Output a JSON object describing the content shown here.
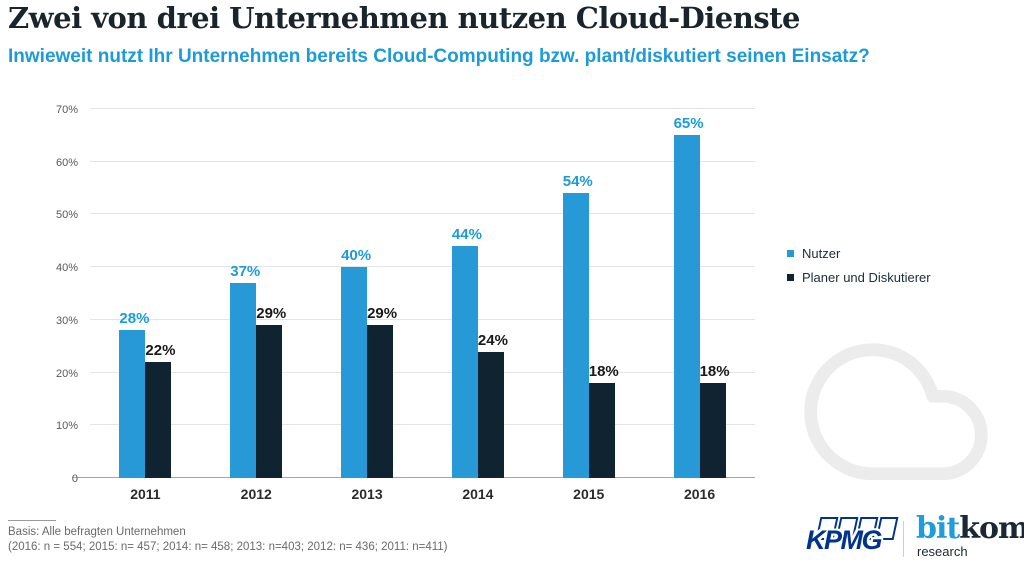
{
  "header": {
    "title": "Zwei von drei Unternehmen nutzen Cloud-Dienste",
    "subtitle": "Inwieweit nutzt Ihr Unternehmen bereits Cloud-Computing bzw. plant/diskutiert seinen Einsatz?"
  },
  "chart_data": {
    "type": "bar",
    "title": "Zwei von drei Unternehmen nutzen Cloud-Dienste",
    "categories": [
      "2011",
      "2012",
      "2013",
      "2014",
      "2015",
      "2016"
    ],
    "series": [
      {
        "name": "Nutzer",
        "color": "#2799d6",
        "label_color": "#1b9cd8",
        "values": [
          28,
          37,
          40,
          44,
          54,
          65
        ]
      },
      {
        "name": "Planer und Diskutierer",
        "color": "#0f2430",
        "label_color": "#1a1a1a",
        "values": [
          22,
          29,
          29,
          24,
          18,
          18
        ]
      }
    ],
    "value_suffix": "%",
    "ylim": [
      0,
      70
    ],
    "yticks": [
      {
        "value": 70,
        "label": "70%"
      },
      {
        "value": 60,
        "label": "60%"
      },
      {
        "value": 50,
        "label": "50%"
      },
      {
        "value": 40,
        "label": "40%"
      },
      {
        "value": 30,
        "label": "30%"
      },
      {
        "value": 20,
        "label": "20%"
      },
      {
        "value": 10,
        "label": "10%"
      },
      {
        "value": 0,
        "label": "0"
      }
    ],
    "grid": "horizontal",
    "legend_position": "right",
    "xlabel": "",
    "ylabel": ""
  },
  "footer": {
    "basis": "Basis: Alle befragten Unternehmen",
    "sample_sizes": "(2016: n = 554; 2015: n= 457; 2014: n= 458; 2013: n=403; 2012: n= 436; 2011: n=411)"
  },
  "branding": {
    "kpmg_label": "KPMG",
    "bitkom_part1": "bit",
    "bitkom_part2": "kom",
    "bitkom_subline": "research"
  },
  "colors": {
    "accent_blue": "#1b9cd8",
    "bar_blue": "#2799d6",
    "bar_dark": "#0f2430",
    "title_text": "#1a242c",
    "gridline": "#e4e4e4",
    "axis": "#a6a6a6",
    "tick_text": "#58595b",
    "footer_text": "#6a6a6a",
    "kpmg_blue": "#00338D",
    "bitkom_blue": "#1f9cd9",
    "bitkom_dark": "#182835",
    "cloud_outline": "#ececec"
  },
  "icons": {
    "cloud": "cloud-icon"
  }
}
